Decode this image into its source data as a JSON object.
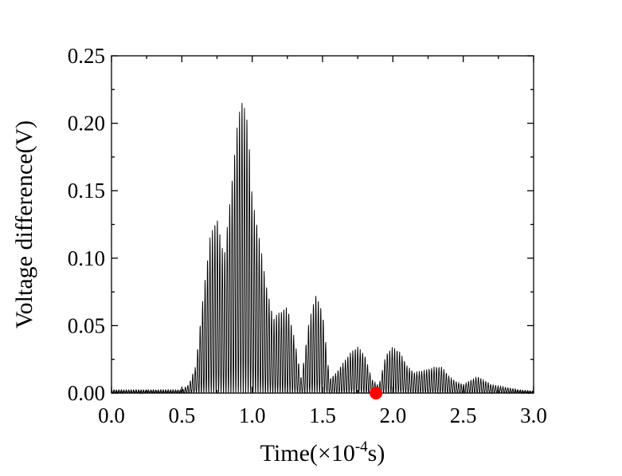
{
  "chart_data": {
    "type": "line",
    "xlabel": {
      "prefix": "Time(×10",
      "exponent": "-4",
      "suffix": "s)"
    },
    "ylabel": "Voltage difference(V)",
    "xlim": [
      0.0,
      3.0
    ],
    "ylim": [
      0.0,
      0.25
    ],
    "x_ticks": [
      "0.0",
      "0.5",
      "1.0",
      "1.5",
      "2.0",
      "2.5",
      "3.0"
    ],
    "y_ticks": [
      "0.00",
      "0.05",
      "0.10",
      "0.15",
      "0.20",
      "0.25"
    ],
    "grid": false,
    "oscillation_period": 0.0175,
    "series": [
      {
        "color": "#000000",
        "envelope": {
          "x": [
            0.0,
            0.5,
            0.55,
            0.6,
            0.65,
            0.7,
            0.75,
            0.8,
            0.85,
            0.9,
            0.93,
            0.97,
            1.0,
            1.05,
            1.1,
            1.15,
            1.2,
            1.25,
            1.3,
            1.35,
            1.4,
            1.45,
            1.5,
            1.55,
            1.6,
            1.7,
            1.75,
            1.8,
            1.85,
            1.9,
            1.95,
            2.0,
            2.05,
            2.1,
            2.15,
            2.2,
            2.3,
            2.35,
            2.4,
            2.45,
            2.5,
            2.6,
            2.65,
            2.7,
            2.8,
            2.9,
            3.0
          ],
          "y": [
            0.002,
            0.002,
            0.006,
            0.02,
            0.07,
            0.115,
            0.13,
            0.1,
            0.15,
            0.205,
            0.217,
            0.2,
            0.145,
            0.115,
            0.08,
            0.055,
            0.06,
            0.064,
            0.04,
            0.01,
            0.05,
            0.073,
            0.06,
            0.01,
            0.015,
            0.03,
            0.034,
            0.028,
            0.01,
            0.005,
            0.028,
            0.034,
            0.03,
            0.02,
            0.015,
            0.016,
            0.019,
            0.019,
            0.012,
            0.008,
            0.006,
            0.012,
            0.009,
            0.006,
            0.004,
            0.002,
            0.001
          ]
        }
      }
    ],
    "marker": {
      "x": 1.88,
      "y": 0.0,
      "color": "#ff0000"
    }
  }
}
